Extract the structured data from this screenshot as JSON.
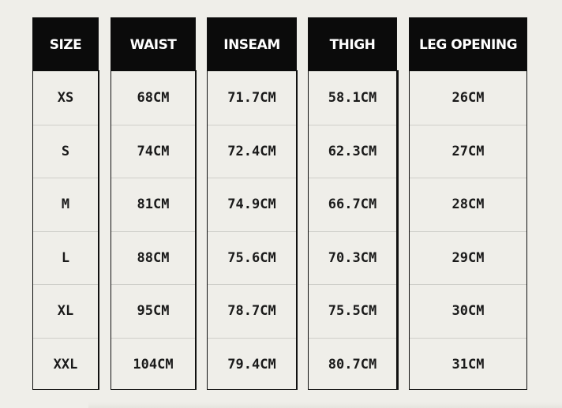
{
  "table": {
    "columns": [
      {
        "key": "size",
        "header": "SIZE",
        "values": [
          "XS",
          "S",
          "M",
          "L",
          "XL",
          "XXL"
        ]
      },
      {
        "key": "waist",
        "header": "WAIST",
        "values": [
          "68CM",
          "74CM",
          "81CM",
          "88CM",
          "95CM",
          "104CM"
        ]
      },
      {
        "key": "inseam",
        "header": "INSEAM",
        "values": [
          "71.7CM",
          "72.4CM",
          "74.9CM",
          "75.6CM",
          "78.7CM",
          "79.4CM"
        ]
      },
      {
        "key": "thigh",
        "header": "THIGH",
        "values": [
          "58.1CM",
          "62.3CM",
          "66.7CM",
          "70.3CM",
          "75.5CM",
          "80.7CM"
        ]
      },
      {
        "key": "leg_opening",
        "header": "LEG OPENING",
        "values": [
          "26CM",
          "27CM",
          "28CM",
          "29CM",
          "30CM",
          "31CM"
        ]
      }
    ]
  },
  "colors": {
    "background": "#efeee9",
    "header_background": "#0b0b0b",
    "header_text": "#ffffff",
    "border": "#111111",
    "row_separator": "#cfcfca"
  }
}
